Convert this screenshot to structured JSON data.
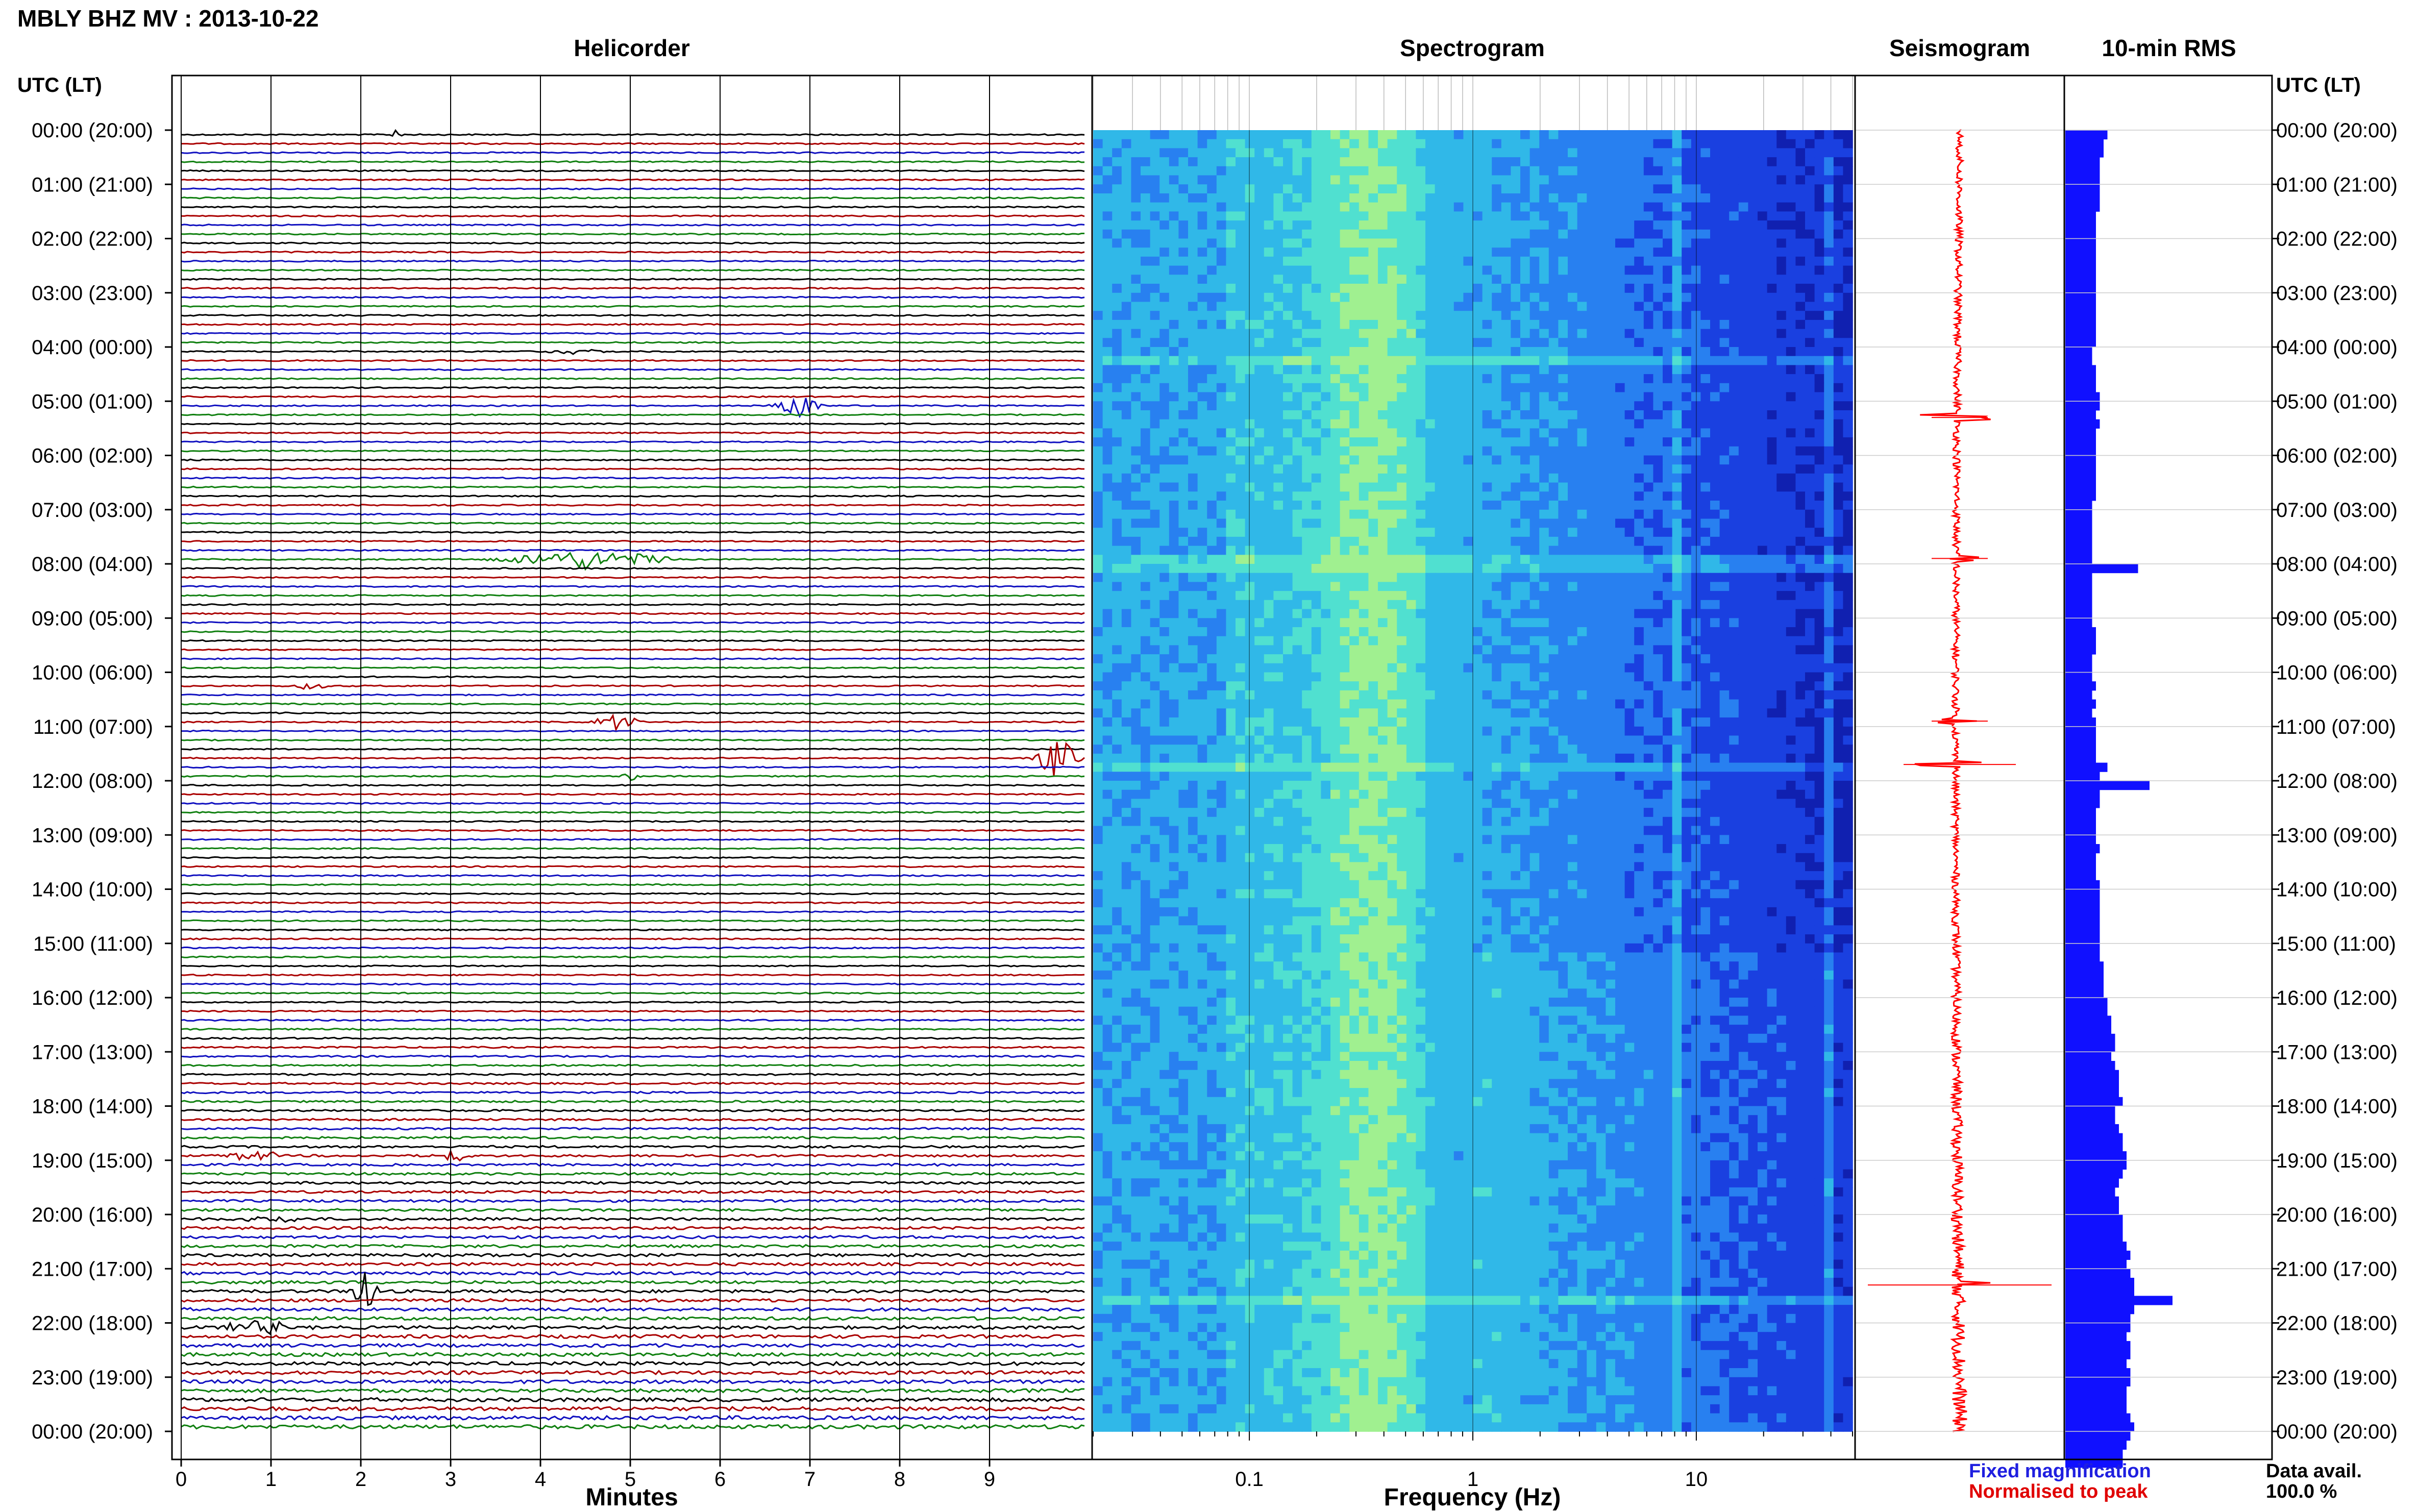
{
  "header": {
    "title": "MBLY BHZ MV : 2013-10-22"
  },
  "panels": {
    "helicorder": "Helicorder",
    "spectrogram": "Spectrogram",
    "seismogram": "Seismogram",
    "rms": "10-min RMS"
  },
  "axis": {
    "utc_lt": "UTC (LT)",
    "minutes": "Minutes",
    "frequency": "Frequency (Hz)"
  },
  "footer": {
    "fixed": "Fixed magnification",
    "normalised": "Normalised to peak",
    "data_avail": "Data avail.",
    "data_pct": "100.0 %"
  },
  "colors": {
    "fixed": "#1f1fe0",
    "normalised": "#e00000",
    "rms_bar": "#1010ff",
    "seismogram": "#ff0000"
  },
  "chart_data": [
    {
      "type": "line",
      "title": "Helicorder",
      "xlabel": "Minutes",
      "xlim": [
        0,
        10
      ],
      "x_ticks": [
        0,
        1,
        2,
        3,
        4,
        5,
        6,
        7,
        8,
        9
      ],
      "y_tick_labels": [
        "00:00 (20:00)",
        "01:00 (21:00)",
        "02:00 (22:00)",
        "03:00 (23:00)",
        "04:00 (00:00)",
        "05:00 (01:00)",
        "06:00 (02:00)",
        "07:00 (03:00)",
        "08:00 (04:00)",
        "09:00 (05:00)",
        "10:00 (06:00)",
        "11:00 (07:00)",
        "12:00 (08:00)",
        "13:00 (09:00)",
        "14:00 (10:00)",
        "15:00 (11:00)",
        "16:00 (12:00)",
        "17:00 (13:00)",
        "18:00 (14:00)",
        "19:00 (15:00)",
        "20:00 (16:00)",
        "21:00 (17:00)",
        "22:00 (18:00)",
        "23:00 (19:00)",
        "00:00 (20:00)"
      ],
      "line_colors": [
        "#000000",
        "#aa0000",
        "#1010c0",
        "#108010"
      ],
      "lines_per_hour": 6,
      "events": [
        {
          "hour": 0.0,
          "minute": 2.4,
          "amp": 0.5,
          "dur": 0.15
        },
        {
          "hour": 4.1,
          "minute": 4.4,
          "amp": 0.35,
          "dur": 0.4
        },
        {
          "hour": 5.1,
          "minute": 6.85,
          "amp": 1.2,
          "dur": 0.35
        },
        {
          "hour": 7.85,
          "minute": 4.5,
          "amp": 1.0,
          "dur": 1.2
        },
        {
          "hour": 10.2,
          "minute": 1.4,
          "amp": 0.5,
          "dur": 0.3
        },
        {
          "hour": 10.95,
          "minute": 4.85,
          "amp": 0.8,
          "dur": 0.35
        },
        {
          "hour": 11.5,
          "minute": 9.75,
          "amp": 2.2,
          "dur": 0.3
        },
        {
          "hour": 11.85,
          "minute": 5.0,
          "amp": 0.5,
          "dur": 0.15
        },
        {
          "hour": 20.15,
          "minute": 1.05,
          "amp": 0.5,
          "dur": 0.4
        },
        {
          "hour": 21.35,
          "minute": 2.05,
          "amp": 2.0,
          "dur": 0.2
        },
        {
          "hour": 22.0,
          "minute": 0.9,
          "amp": 0.7,
          "dur": 0.6
        },
        {
          "hour": 18.9,
          "minute": 0.8,
          "amp": 0.6,
          "dur": 0.4
        },
        {
          "hour": 18.95,
          "minute": 3.05,
          "amp": 0.6,
          "dur": 0.3
        }
      ]
    },
    {
      "type": "heatmap",
      "title": "Spectrogram",
      "xlabel": "Frequency (Hz)",
      "x_scale": "log",
      "xlim": [
        0.02,
        50
      ],
      "x_ticks": [
        0.1,
        1,
        10
      ],
      "x_tick_labels": [
        "0.1",
        "1",
        "10"
      ],
      "color_scale": [
        "#1020b0",
        "#1a40e0",
        "#2880f0",
        "#30b8e8",
        "#50e0d0",
        "#a0f090"
      ],
      "peak_frequency_hz": 0.35,
      "line_frequencies_hz": [
        8.0,
        40.0
      ],
      "event_hours": [
        4.2,
        7.9,
        11.7,
        21.5
      ]
    },
    {
      "type": "line",
      "title": "Seismogram",
      "color": "#ff0000",
      "normalised_to_peak": true,
      "spikes_hours": [
        5.3,
        7.9,
        10.9,
        11.7,
        21.3
      ]
    },
    {
      "type": "bar",
      "title": "10-min RMS",
      "orientation": "horizontal",
      "bins_per_hour": 6,
      "values": [
        0.55,
        0.5,
        0.5,
        0.45,
        0.45,
        0.45,
        0.45,
        0.45,
        0.45,
        0.4,
        0.4,
        0.4,
        0.4,
        0.4,
        0.4,
        0.4,
        0.4,
        0.4,
        0.4,
        0.4,
        0.4,
        0.4,
        0.4,
        0.4,
        0.35,
        0.35,
        0.4,
        0.4,
        0.4,
        0.45,
        0.45,
        0.4,
        0.45,
        0.4,
        0.4,
        0.4,
        0.4,
        0.4,
        0.4,
        0.4,
        0.4,
        0.35,
        0.35,
        0.35,
        0.35,
        0.35,
        0.35,
        0.35,
        0.95,
        0.35,
        0.35,
        0.35,
        0.35,
        0.35,
        0.35,
        0.4,
        0.4,
        0.4,
        0.35,
        0.35,
        0.35,
        0.4,
        0.35,
        0.4,
        0.35,
        0.4,
        0.4,
        0.4,
        0.4,
        0.4,
        0.55,
        0.45,
        1.1,
        0.45,
        0.45,
        0.4,
        0.4,
        0.4,
        0.4,
        0.45,
        0.4,
        0.4,
        0.4,
        0.45,
        0.45,
        0.45,
        0.45,
        0.45,
        0.45,
        0.45,
        0.45,
        0.45,
        0.5,
        0.5,
        0.5,
        0.5,
        0.55,
        0.55,
        0.6,
        0.6,
        0.65,
        0.65,
        0.6,
        0.65,
        0.7,
        0.7,
        0.7,
        0.75,
        0.65,
        0.65,
        0.7,
        0.75,
        0.75,
        0.8,
        0.8,
        0.75,
        0.7,
        0.65,
        0.7,
        0.7,
        0.75,
        0.75,
        0.75,
        0.8,
        0.85,
        0.8,
        0.85,
        0.9,
        0.9,
        1.4,
        0.9,
        0.85,
        0.85,
        0.8,
        0.85,
        0.85,
        0.8,
        0.85,
        0.85,
        0.8,
        0.8,
        0.8,
        0.85,
        0.9,
        0.85,
        0.8,
        0.75,
        0.75
      ],
      "color": "#1010ff"
    }
  ]
}
